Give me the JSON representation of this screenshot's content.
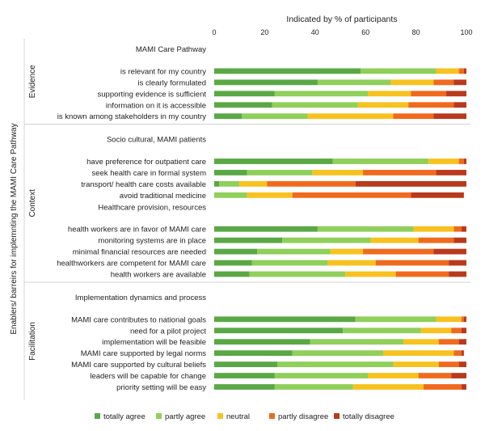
{
  "chart_data": {
    "type": "bar",
    "stacked": "percent",
    "orientation": "horizontal",
    "title": "Indicated by % of participants",
    "ylabel": "Enablers/ barreirs for implemnting the MAMI Care Pathway",
    "xlim": [
      0,
      100
    ],
    "xticks": [
      0,
      20,
      40,
      60,
      80,
      100
    ],
    "grid": false,
    "legend_position": "bottom",
    "legend": [
      {
        "name": "totally agree",
        "color": "#5aa845"
      },
      {
        "name": "partly agree",
        "color": "#8fcf5a"
      },
      {
        "name": "neutral",
        "color": "#f7c21f"
      },
      {
        "name": "partly disagree",
        "color": "#f06a1e"
      },
      {
        "name": "totally disagree",
        "color": "#b83a1c"
      }
    ],
    "groups": [
      {
        "name": "Evidence",
        "subheaders": [
          {
            "before": 0,
            "text": "MAMI Care Pathway"
          }
        ],
        "rows": [
          {
            "label": "is relevant for my country",
            "values": [
              58,
              30,
              9,
              2,
              1
            ]
          },
          {
            "label": "is clearly formulated",
            "values": [
              41,
              29,
              17,
              8,
              5
            ]
          },
          {
            "label": "supporting evidence is sufficient",
            "values": [
              24,
              37,
              17,
              14,
              8
            ]
          },
          {
            "label": "information on it is accessible",
            "values": [
              23,
              34,
              20,
              18,
              5
            ]
          },
          {
            "label": "is known among stakeholders in my country",
            "values": [
              11,
              26,
              34,
              16,
              13
            ]
          }
        ]
      },
      {
        "name": "Context",
        "subheaders": [
          {
            "before": 0,
            "text": "Socio cultural, MAMI patients"
          },
          {
            "before": 4,
            "text": "Healthcare provision, resources"
          }
        ],
        "rows": [
          {
            "label": "have preference for outpatient care",
            "values": [
              47,
              38,
              12,
              2,
              1
            ]
          },
          {
            "label": "seek health care in formal system",
            "values": [
              13,
              26,
              20,
              29,
              12
            ]
          },
          {
            "label": "transport/ health care costs available",
            "values": [
              2,
              8,
              11,
              35,
              44
            ]
          },
          {
            "label": "avoid traditional medicine",
            "values": [
              0,
              13,
              18,
              47,
              21
            ]
          },
          {
            "label": "health workers are in favor of MAMI care",
            "values": [
              41,
              38,
              16,
              3,
              2
            ]
          },
          {
            "label": "monitoring systems are in place",
            "values": [
              27,
              35,
              19,
              14,
              5
            ]
          },
          {
            "label": "minimal financial resources are needed",
            "values": [
              17,
              29,
              13,
              28,
              13
            ]
          },
          {
            "label": "healthworkers are competent for MAMI care",
            "values": [
              15,
              30,
              19,
              29,
              7
            ]
          },
          {
            "label": "health workers are available",
            "values": [
              14,
              38,
              20,
              21,
              7
            ]
          }
        ]
      },
      {
        "name": "Facilitation",
        "subheaders": [
          {
            "before": 0,
            "text": "Implementation dynamics and process"
          }
        ],
        "rows": [
          {
            "label": "MAMI care contributes to national goals",
            "values": [
              56,
              32,
              10,
              1,
              1
            ]
          },
          {
            "label": "need for a pilot project",
            "values": [
              51,
              31,
              12,
              4,
              2
            ]
          },
          {
            "label": "implementation will be feasible",
            "values": [
              38,
              37,
              14,
              8,
              3
            ]
          },
          {
            "label": "MAMI care supported by legal norms",
            "values": [
              31,
              36,
              28,
              3,
              1
            ]
          },
          {
            "label": "MAMI care supported by cultural beliefs",
            "values": [
              25,
              46,
              18,
              8,
              3
            ]
          },
          {
            "label": "leaders will be capable for change",
            "values": [
              24,
              37,
              20,
              13,
              6
            ]
          },
          {
            "label": "priority setting will be easy",
            "values": [
              24,
              31,
              28,
              15,
              2
            ]
          }
        ]
      }
    ]
  }
}
